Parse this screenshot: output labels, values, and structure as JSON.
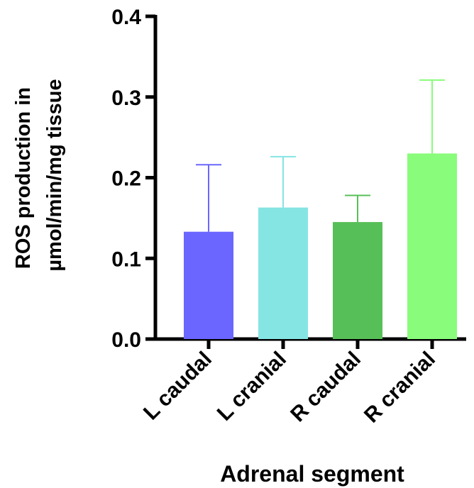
{
  "chart_data": {
    "type": "bar",
    "xlabel": "Adrenal segment",
    "ylabel_lines": [
      "ROS production in",
      "µmol/min/mg tissue"
    ],
    "categories": [
      "L caudal",
      "L cranial",
      "R caudal",
      "R cranial"
    ],
    "values": [
      0.133,
      0.163,
      0.145,
      0.23
    ],
    "error_upper": [
      0.216,
      0.226,
      0.178,
      0.321
    ],
    "colors": [
      "#6A66FF",
      "#85E5E3",
      "#57BF57",
      "#89FC7B"
    ],
    "error_colors": [
      "#6A66FF",
      "#85E5E3",
      "#57BF57",
      "#89FC7B"
    ],
    "ylim": [
      0,
      0.4
    ],
    "yticks": [
      "0.0",
      "0.1",
      "0.2",
      "0.3",
      "0.4"
    ],
    "grid": false,
    "legend": "none"
  }
}
